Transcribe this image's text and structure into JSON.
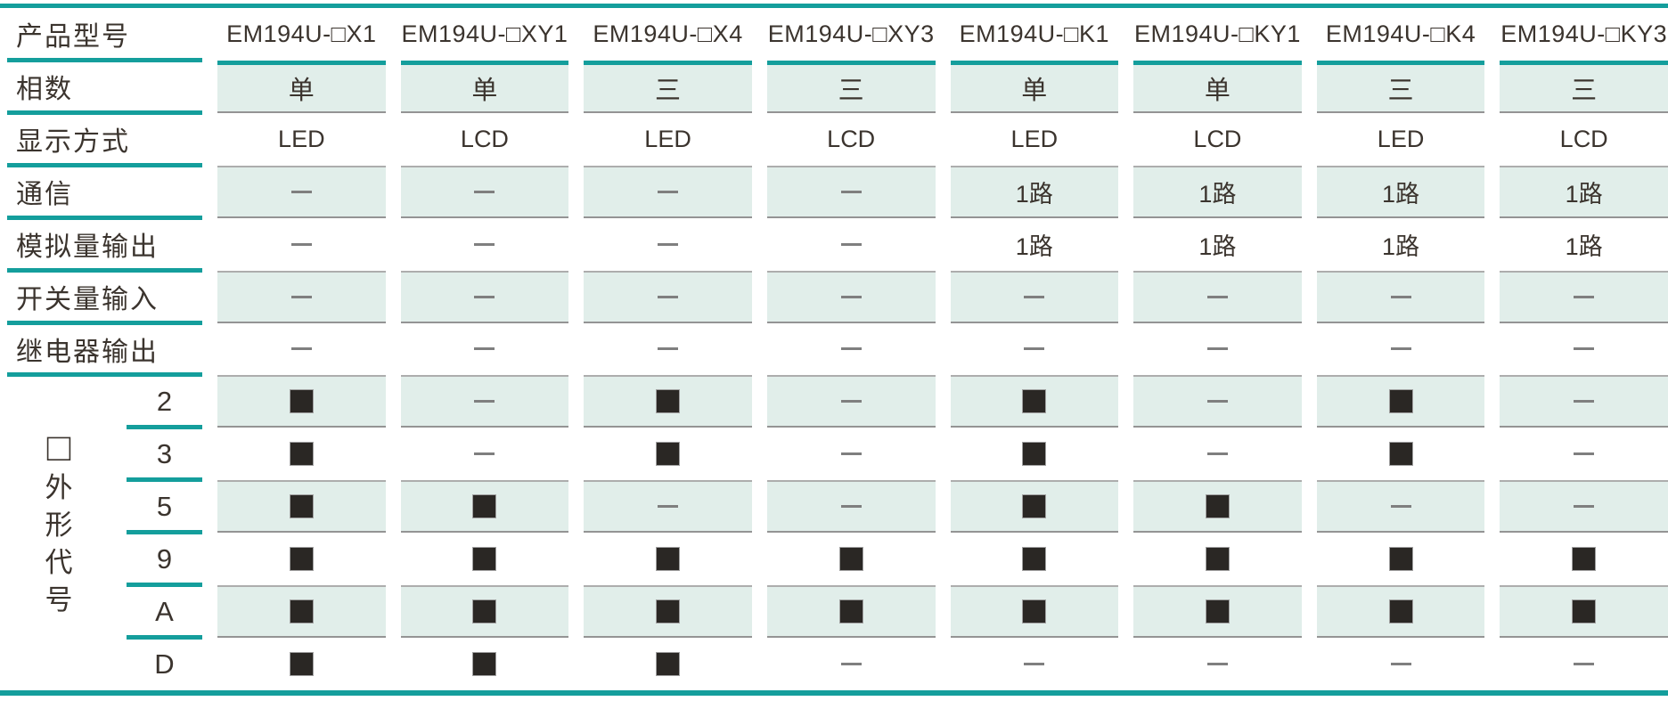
{
  "title_row": {
    "label": "产品型号",
    "models": [
      "EM194U-□X1",
      "EM194U-□XY1",
      "EM194U-□X4",
      "EM194U-□XY3",
      "EM194U-□K1",
      "EM194U-□KY1",
      "EM194U-□K4",
      "EM194U-□KY3"
    ]
  },
  "spec_rows": [
    {
      "label": "相数",
      "shaded": true,
      "accent": true,
      "values": [
        "单",
        "单",
        "三",
        "三",
        "单",
        "单",
        "三",
        "三"
      ]
    },
    {
      "label": "显示方式",
      "shaded": false,
      "accent": false,
      "values": [
        "LED",
        "LCD",
        "LED",
        "LCD",
        "LED",
        "LCD",
        "LED",
        "LCD"
      ]
    },
    {
      "label": "通信",
      "shaded": true,
      "accent": false,
      "values": [
        "—",
        "—",
        "—",
        "—",
        "1路",
        "1路",
        "1路",
        "1路"
      ]
    },
    {
      "label": "模拟量输出",
      "shaded": false,
      "accent": false,
      "values": [
        "—",
        "—",
        "—",
        "—",
        "1路",
        "1路",
        "1路",
        "1路"
      ]
    },
    {
      "label": "开关量输入",
      "shaded": true,
      "accent": false,
      "values": [
        "—",
        "—",
        "—",
        "—",
        "—",
        "—",
        "—",
        "—"
      ]
    },
    {
      "label": "继电器输出",
      "shaded": false,
      "accent": false,
      "values": [
        "—",
        "—",
        "—",
        "—",
        "—",
        "—",
        "—",
        "—"
      ]
    }
  ],
  "shape_code_group": {
    "placeholder_symbol": "□",
    "label": "外形代号",
    "rows": [
      {
        "code": "2",
        "shaded": true,
        "values": [
          "■",
          "—",
          "■",
          "—",
          "■",
          "—",
          "■",
          "—"
        ]
      },
      {
        "code": "3",
        "shaded": false,
        "values": [
          "■",
          "—",
          "■",
          "—",
          "■",
          "—",
          "■",
          "—"
        ]
      },
      {
        "code": "5",
        "shaded": true,
        "values": [
          "■",
          "■",
          "—",
          "—",
          "■",
          "■",
          "—",
          "—"
        ]
      },
      {
        "code": "9",
        "shaded": false,
        "values": [
          "■",
          "■",
          "■",
          "■",
          "■",
          "■",
          "■",
          "■"
        ]
      },
      {
        "code": "A",
        "shaded": true,
        "values": [
          "■",
          "■",
          "■",
          "■",
          "■",
          "■",
          "■",
          "■"
        ]
      },
      {
        "code": "D",
        "shaded": false,
        "values": [
          "■",
          "■",
          "■",
          "—",
          "—",
          "—",
          "—",
          "—"
        ]
      }
    ]
  },
  "markers": {
    "filled": "■",
    "none": "—"
  },
  "colors": {
    "teal": "#149e9c",
    "cell_bg": "#e1eeea",
    "text": "#3b342e",
    "square": "#2a2724",
    "dash": "#7f7f7f",
    "hairline_top": "#adadad",
    "hairline_bottom": "#949494"
  }
}
